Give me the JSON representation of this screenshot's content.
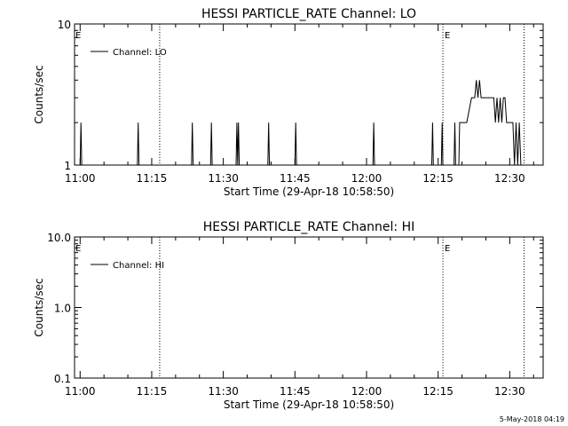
{
  "footer": {
    "timestamp": "5-May-2018 04:19"
  },
  "chart_data": [
    {
      "type": "line",
      "title": "HESSI PARTICLE_RATE Channel: LO",
      "xlabel": "Start Time (29-Apr-18 10:58:50)",
      "ylabel": "Counts/sec",
      "yscale": "log",
      "xlim": [
        "10:58:50",
        "12:37:00"
      ],
      "ylim": [
        1,
        10
      ],
      "x_ticks": [
        "11:00",
        "11:15",
        "11:30",
        "11:45",
        "12:00",
        "12:15",
        "12:30"
      ],
      "y_ticks": [
        "1",
        "10"
      ],
      "legend": {
        "label": "Channel: LO",
        "placement": "top-left"
      },
      "markers": [
        {
          "time": "11:16:40",
          "label": ""
        },
        {
          "time": "12:16:00",
          "label": "E"
        },
        {
          "time": "12:33:00",
          "label": ""
        }
      ],
      "edge_marker_label": "E",
      "series": [
        {
          "name": "Channel: LO",
          "points": [
            [
              "11:00:00",
              1
            ],
            [
              "11:00:10",
              2
            ],
            [
              "11:00:20",
              1
            ],
            [
              "11:12:00",
              1
            ],
            [
              "11:12:10",
              2
            ],
            [
              "11:12:20",
              1
            ],
            [
              "11:23:20",
              1
            ],
            [
              "11:23:30",
              2
            ],
            [
              "11:23:40",
              1
            ],
            [
              "11:27:20",
              1
            ],
            [
              "11:27:30",
              2
            ],
            [
              "11:27:40",
              1
            ],
            [
              "11:32:40",
              1
            ],
            [
              "11:32:50",
              2
            ],
            [
              "11:33:00",
              1
            ],
            [
              "11:33:10",
              2
            ],
            [
              "11:33:20",
              1
            ],
            [
              "11:39:20",
              1
            ],
            [
              "11:39:30",
              2
            ],
            [
              "11:39:40",
              1
            ],
            [
              "11:45:00",
              1
            ],
            [
              "11:45:10",
              2
            ],
            [
              "11:45:20",
              1
            ],
            [
              "12:01:20",
              1
            ],
            [
              "12:01:30",
              2
            ],
            [
              "12:01:40",
              1
            ],
            [
              "12:13:40",
              1
            ],
            [
              "12:13:50",
              2
            ],
            [
              "12:14:00",
              1
            ],
            [
              "12:15:40",
              1
            ],
            [
              "12:15:50",
              2
            ],
            [
              "12:16:00",
              1
            ],
            [
              "12:18:20",
              1
            ],
            [
              "12:18:30",
              2
            ],
            [
              "12:18:40",
              1
            ],
            [
              "12:19:20",
              1
            ],
            [
              "12:19:30",
              2
            ],
            [
              "12:20:00",
              2
            ],
            [
              "12:21:00",
              2
            ],
            [
              "12:22:00",
              3
            ],
            [
              "12:22:40",
              3
            ],
            [
              "12:23:00",
              4
            ],
            [
              "12:23:20",
              3
            ],
            [
              "12:23:40",
              4
            ],
            [
              "12:24:00",
              3
            ],
            [
              "12:25:00",
              3
            ],
            [
              "12:26:00",
              3
            ],
            [
              "12:26:40",
              3
            ],
            [
              "12:27:00",
              2
            ],
            [
              "12:27:20",
              3
            ],
            [
              "12:27:40",
              2
            ],
            [
              "12:28:00",
              3
            ],
            [
              "12:28:20",
              2
            ],
            [
              "12:28:40",
              3
            ],
            [
              "12:29:00",
              3
            ],
            [
              "12:29:20",
              2
            ],
            [
              "12:30:00",
              2
            ],
            [
              "12:30:40",
              2
            ],
            [
              "12:31:00",
              1
            ],
            [
              "12:31:20",
              2
            ],
            [
              "12:31:40",
              1
            ],
            [
              "12:32:00",
              2
            ],
            [
              "12:32:20",
              1
            ]
          ]
        }
      ]
    },
    {
      "type": "line",
      "title": "HESSI PARTICLE_RATE Channel: HI",
      "xlabel": "Start Time (29-Apr-18 10:58:50)",
      "ylabel": "Counts/sec",
      "yscale": "log",
      "xlim": [
        "10:58:50",
        "12:37:00"
      ],
      "ylim": [
        0.1,
        10
      ],
      "x_ticks": [
        "11:00",
        "11:15",
        "11:30",
        "11:45",
        "12:00",
        "12:15",
        "12:30"
      ],
      "y_ticks": [
        "0.1",
        "1.0",
        "10.0"
      ],
      "legend": {
        "label": "Channel: HI",
        "placement": "top-left"
      },
      "markers": [
        {
          "time": "11:16:40",
          "label": ""
        },
        {
          "time": "12:16:00",
          "label": "E"
        },
        {
          "time": "12:33:00",
          "label": ""
        }
      ],
      "edge_marker_label": "E",
      "series": [
        {
          "name": "Channel: HI",
          "points": []
        }
      ]
    }
  ]
}
